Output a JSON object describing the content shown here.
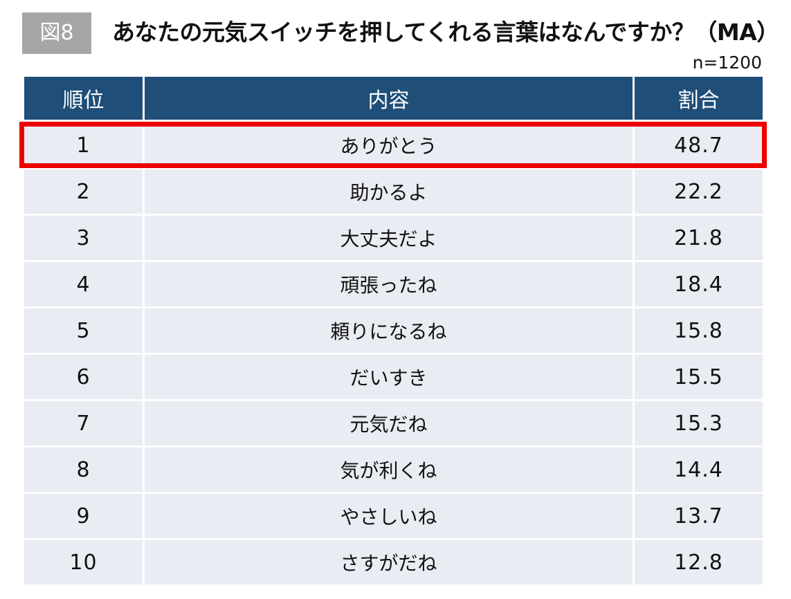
{
  "figure_label": "図8",
  "title": "あなたの元気スイッチを押してくれる言葉はなんですか？（MA）",
  "sample_size": "n=1200",
  "colors": {
    "header_bg": "#1f4e79",
    "row_bg": "#e9ecf2",
    "highlight": "#ee0000",
    "badge_bg": "#a6a6a6"
  },
  "chart_data": {
    "type": "table",
    "columns": [
      "順位",
      "内容",
      "割合"
    ],
    "rows": [
      {
        "rank": "1",
        "content": "ありがとう",
        "pct": "48.7"
      },
      {
        "rank": "2",
        "content": "助かるよ",
        "pct": "22.2"
      },
      {
        "rank": "3",
        "content": "大丈夫だよ",
        "pct": "21.8"
      },
      {
        "rank": "4",
        "content": "頑張ったね",
        "pct": "18.4"
      },
      {
        "rank": "5",
        "content": "頼りになるね",
        "pct": "15.8"
      },
      {
        "rank": "6",
        "content": "だいすき",
        "pct": "15.5"
      },
      {
        "rank": "7",
        "content": "元気だね",
        "pct": "15.3"
      },
      {
        "rank": "8",
        "content": "気が利くね",
        "pct": "14.4"
      },
      {
        "rank": "9",
        "content": "やさしいね",
        "pct": "13.7"
      },
      {
        "rank": "10",
        "content": "さすがだね",
        "pct": "12.8"
      }
    ],
    "highlighted_rank": "1"
  }
}
